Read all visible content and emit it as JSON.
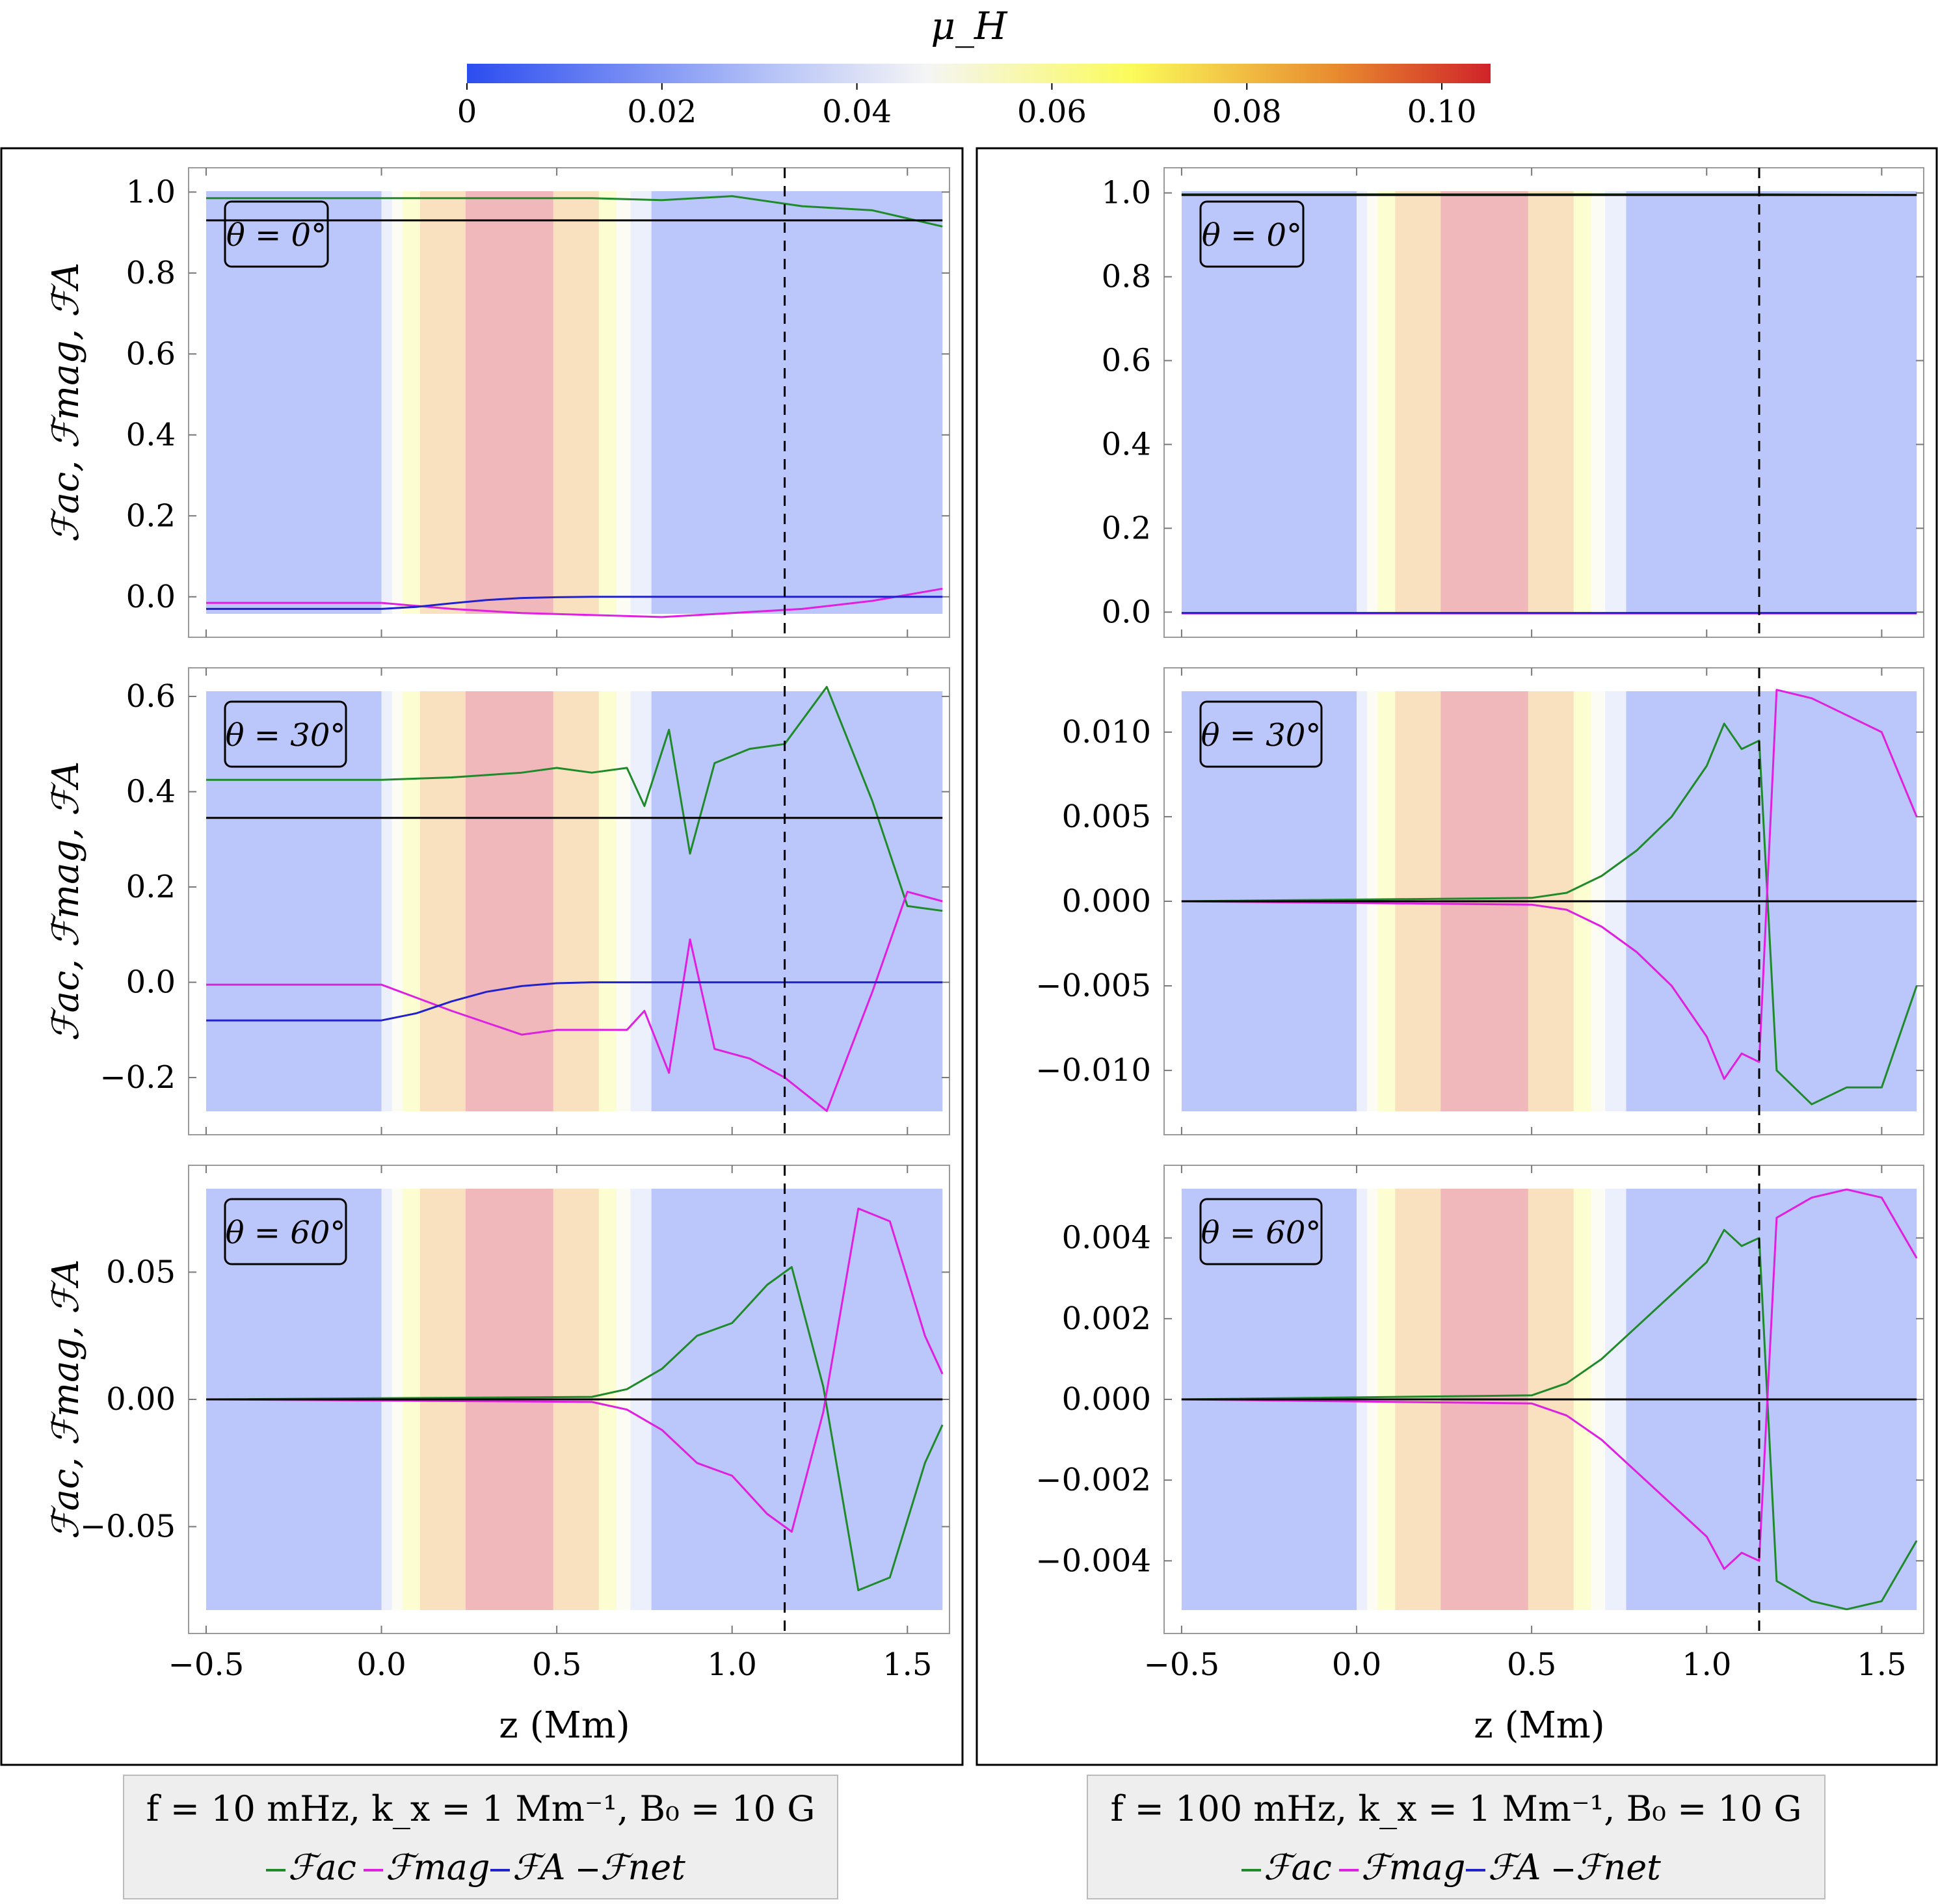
{
  "colorbar": {
    "title": "μ_H",
    "ticks": [
      "0",
      "0.02",
      "0.04",
      "0.06",
      "0.08",
      "0.10"
    ],
    "tick_values": [
      0,
      0.02,
      0.04,
      0.06,
      0.08,
      0.1
    ],
    "range": [
      0,
      0.105
    ],
    "colors": [
      "#2c4df0",
      "#b7c4f7",
      "#f5f5f5",
      "#fbfb5a",
      "#e88a2e",
      "#d0232a"
    ]
  },
  "bands": [
    {
      "z0": -0.5,
      "z1": 0.0,
      "mu": 0.0
    },
    {
      "z0": 0.0,
      "z1": 0.03,
      "mu": 0.035
    },
    {
      "z0": 0.03,
      "z1": 0.06,
      "mu": 0.05
    },
    {
      "z0": 0.06,
      "z1": 0.11,
      "mu": 0.065
    },
    {
      "z0": 0.11,
      "z1": 0.24,
      "mu": 0.085
    },
    {
      "z0": 0.24,
      "z1": 0.49,
      "mu": 0.105
    },
    {
      "z0": 0.49,
      "z1": 0.62,
      "mu": 0.085
    },
    {
      "z0": 0.62,
      "z1": 0.67,
      "mu": 0.065
    },
    {
      "z0": 0.67,
      "z1": 0.71,
      "mu": 0.05
    },
    {
      "z0": 0.71,
      "z1": 0.77,
      "mu": 0.035
    },
    {
      "z0": 0.77,
      "z1": 1.6,
      "mu": 0.0
    }
  ],
  "series_colors": {
    "ac": "#1f8a2a",
    "mag": "#e020e0",
    "A": "#2222cc",
    "net": "#000000"
  },
  "columns": [
    {
      "legend_title": "f = 10 mHz, k_x = 1 Mm⁻¹, B₀ = 10 G",
      "legend_items": [
        "ℱac",
        "ℱmag",
        "ℱA",
        "ℱnet"
      ],
      "xlabel": "z  (Mm)",
      "xticks": [
        "−0.5",
        "0.0",
        "0.5",
        "1.0",
        "1.5"
      ]
    },
    {
      "legend_title": "f = 100 mHz, k_x = 1 Mm⁻¹, B₀ = 10 G",
      "legend_items": [
        "ℱac",
        "ℱmag",
        "ℱA",
        "ℱnet"
      ],
      "xlabel": "z  (Mm)",
      "xticks": [
        "−0.5",
        "0.0",
        "0.5",
        "1.0",
        "1.5"
      ]
    }
  ],
  "chart_data": [
    {
      "type": "line",
      "panel": "left-top",
      "title": "θ = 0°",
      "ylabel": "ℱac, ℱmag, ℱA",
      "xlabel": "z (Mm)",
      "xlim": [
        -0.55,
        1.62
      ],
      "ylim": [
        -0.1,
        1.06
      ],
      "dashed_x": 1.15,
      "yticks": [
        1.0,
        0.8,
        0.6,
        0.4,
        0.2,
        0.0
      ],
      "ytick_labels": [
        "1.0",
        "0.8",
        "0.6",
        "0.4",
        "0.2",
        "0.0"
      ],
      "xticks": [
        -0.5,
        0.0,
        0.5,
        1.0,
        1.5
      ],
      "series": [
        {
          "name": "ℱac",
          "x": [
            -0.5,
            0.0,
            0.3,
            0.6,
            0.8,
            1.0,
            1.2,
            1.4,
            1.6
          ],
          "y": [
            0.985,
            0.985,
            0.985,
            0.985,
            0.98,
            0.99,
            0.965,
            0.955,
            0.915
          ]
        },
        {
          "name": "ℱmag",
          "x": [
            -0.5,
            0.0,
            0.2,
            0.4,
            0.6,
            0.8,
            1.0,
            1.2,
            1.4,
            1.6
          ],
          "y": [
            -0.015,
            -0.015,
            -0.03,
            -0.04,
            -0.045,
            -0.05,
            -0.04,
            -0.03,
            -0.01,
            0.02
          ]
        },
        {
          "name": "ℱA",
          "x": [
            -0.5,
            0.0,
            0.1,
            0.2,
            0.3,
            0.4,
            0.5,
            0.6,
            1.0,
            1.6
          ],
          "y": [
            -0.03,
            -0.03,
            -0.025,
            -0.016,
            -0.008,
            -0.003,
            -0.001,
            0.0,
            0.0,
            0.0
          ]
        },
        {
          "name": "ℱnet",
          "x": [
            -0.5,
            1.6
          ],
          "y": [
            0.93,
            0.93
          ]
        }
      ]
    },
    {
      "type": "line",
      "panel": "left-middle",
      "title": "θ = 30°",
      "ylabel": "ℱac, ℱmag, ℱA",
      "xlabel": "z (Mm)",
      "xlim": [
        -0.55,
        1.62
      ],
      "ylim": [
        -0.32,
        0.66
      ],
      "dashed_x": 1.15,
      "yticks": [
        0.6,
        0.4,
        0.2,
        0.0,
        -0.2
      ],
      "ytick_labels": [
        "0.6",
        "0.4",
        "0.2",
        "0.0",
        "−0.2"
      ],
      "xticks": [
        -0.5,
        0.0,
        0.5,
        1.0,
        1.5
      ],
      "series": [
        {
          "name": "ℱac",
          "x": [
            -0.5,
            0.0,
            0.2,
            0.4,
            0.5,
            0.6,
            0.7,
            0.75,
            0.82,
            0.88,
            0.95,
            1.05,
            1.15,
            1.27,
            1.4,
            1.5,
            1.6
          ],
          "y": [
            0.425,
            0.425,
            0.43,
            0.44,
            0.45,
            0.44,
            0.45,
            0.37,
            0.53,
            0.27,
            0.46,
            0.49,
            0.5,
            0.62,
            0.38,
            0.16,
            0.15
          ]
        },
        {
          "name": "ℱmag",
          "x": [
            -0.5,
            0.0,
            0.2,
            0.4,
            0.5,
            0.6,
            0.7,
            0.75,
            0.82,
            0.88,
            0.95,
            1.05,
            1.15,
            1.27,
            1.4,
            1.5,
            1.6
          ],
          "y": [
            -0.005,
            -0.005,
            -0.06,
            -0.11,
            -0.1,
            -0.1,
            -0.1,
            -0.06,
            -0.19,
            0.09,
            -0.14,
            -0.16,
            -0.2,
            -0.27,
            -0.02,
            0.19,
            0.17
          ]
        },
        {
          "name": "ℱA",
          "x": [
            -0.5,
            0.0,
            0.1,
            0.2,
            0.3,
            0.4,
            0.5,
            0.6,
            1.0,
            1.6
          ],
          "y": [
            -0.08,
            -0.08,
            -0.065,
            -0.04,
            -0.02,
            -0.008,
            -0.002,
            0.0,
            0.0,
            0.0
          ]
        },
        {
          "name": "ℱnet",
          "x": [
            -0.5,
            1.6
          ],
          "y": [
            0.345,
            0.345
          ]
        }
      ]
    },
    {
      "type": "line",
      "panel": "left-bottom",
      "title": "θ = 60°",
      "ylabel": "ℱac, ℱmag, ℱA",
      "xlabel": "z (Mm)",
      "xlim": [
        -0.55,
        1.62
      ],
      "ylim": [
        -0.092,
        0.092
      ],
      "dashed_x": 1.15,
      "yticks": [
        0.05,
        0.0,
        -0.05
      ],
      "ytick_labels": [
        "0.05",
        "0.00",
        "−0.05"
      ],
      "xticks": [
        -0.5,
        0.0,
        0.5,
        1.0,
        1.5
      ],
      "series": [
        {
          "name": "ℱac",
          "x": [
            -0.5,
            0.6,
            0.7,
            0.8,
            0.9,
            1.0,
            1.1,
            1.17,
            1.26,
            1.36,
            1.45,
            1.55,
            1.6
          ],
          "y": [
            0.0,
            0.001,
            0.004,
            0.012,
            0.025,
            0.03,
            0.045,
            0.052,
            0.005,
            -0.075,
            -0.07,
            -0.025,
            -0.01
          ]
        },
        {
          "name": "ℱmag",
          "x": [
            -0.5,
            0.6,
            0.7,
            0.8,
            0.9,
            1.0,
            1.1,
            1.17,
            1.26,
            1.36,
            1.45,
            1.55,
            1.6
          ],
          "y": [
            0.0,
            -0.001,
            -0.004,
            -0.012,
            -0.025,
            -0.03,
            -0.045,
            -0.052,
            -0.005,
            0.075,
            0.07,
            0.025,
            0.01
          ]
        },
        {
          "name": "ℱA",
          "x": [
            -0.5,
            1.6
          ],
          "y": [
            0.0,
            0.0
          ]
        },
        {
          "name": "ℱnet",
          "x": [
            -0.5,
            1.6
          ],
          "y": [
            0.0,
            0.0
          ]
        }
      ]
    },
    {
      "type": "line",
      "panel": "right-top",
      "title": "θ = 0°",
      "ylabel": "",
      "xlabel": "z (Mm)",
      "xlim": [
        -0.55,
        1.62
      ],
      "ylim": [
        -0.06,
        1.06
      ],
      "dashed_x": 1.15,
      "yticks": [
        1.0,
        0.8,
        0.6,
        0.4,
        0.2,
        0.0
      ],
      "ytick_labels": [
        "1.0",
        "0.8",
        "0.6",
        "0.4",
        "0.2",
        "0.0"
      ],
      "xticks": [
        -0.5,
        0.0,
        0.5,
        1.0,
        1.5
      ],
      "series": [
        {
          "name": "ℱac",
          "x": [
            -0.5,
            1.15,
            1.6
          ],
          "y": [
            0.997,
            0.997,
            0.995
          ]
        },
        {
          "name": "ℱmag",
          "x": [
            -0.5,
            1.6
          ],
          "y": [
            -0.003,
            -0.003
          ]
        },
        {
          "name": "ℱA",
          "x": [
            -0.5,
            1.6
          ],
          "y": [
            -0.002,
            -0.002
          ]
        },
        {
          "name": "ℱnet",
          "x": [
            -0.5,
            1.6
          ],
          "y": [
            0.995,
            0.995
          ]
        }
      ]
    },
    {
      "type": "line",
      "panel": "right-middle",
      "title": "θ = 30°",
      "ylabel": "",
      "xlabel": "z (Mm)",
      "xlim": [
        -0.55,
        1.62
      ],
      "ylim": [
        -0.0138,
        0.0138
      ],
      "dashed_x": 1.15,
      "yticks": [
        0.01,
        0.005,
        0.0,
        -0.005,
        -0.01
      ],
      "ytick_labels": [
        "0.010",
        "0.005",
        "0.000",
        "−0.005",
        "−0.010"
      ],
      "xticks": [
        -0.5,
        0.0,
        0.5,
        1.0,
        1.5
      ],
      "series": [
        {
          "name": "ℱac",
          "x": [
            -0.5,
            0.5,
            0.6,
            0.7,
            0.8,
            0.9,
            1.0,
            1.05,
            1.1,
            1.15,
            1.2,
            1.3,
            1.4,
            1.5,
            1.6
          ],
          "y": [
            0.0,
            0.0002,
            0.0005,
            0.0015,
            0.003,
            0.005,
            0.008,
            0.0105,
            0.009,
            0.0095,
            -0.01,
            -0.012,
            -0.011,
            -0.011,
            -0.005
          ]
        },
        {
          "name": "ℱmag",
          "x": [
            -0.5,
            0.5,
            0.6,
            0.7,
            0.8,
            0.9,
            1.0,
            1.05,
            1.1,
            1.15,
            1.2,
            1.3,
            1.4,
            1.5,
            1.6
          ],
          "y": [
            0.0,
            -0.0002,
            -0.0005,
            -0.0015,
            -0.003,
            -0.005,
            -0.008,
            -0.0105,
            -0.009,
            -0.0095,
            0.0125,
            0.012,
            0.011,
            0.01,
            0.005
          ]
        },
        {
          "name": "ℱA",
          "x": [
            -0.5,
            1.6
          ],
          "y": [
            0.0,
            0.0
          ]
        },
        {
          "name": "ℱnet",
          "x": [
            -0.5,
            1.6
          ],
          "y": [
            0.0,
            0.0
          ]
        }
      ]
    },
    {
      "type": "line",
      "panel": "right-bottom",
      "title": "θ = 60°",
      "ylabel": "",
      "xlabel": "z (Mm)",
      "xlim": [
        -0.55,
        1.62
      ],
      "ylim": [
        -0.0058,
        0.0058
      ],
      "dashed_x": 1.15,
      "yticks": [
        0.004,
        0.002,
        0.0,
        -0.002,
        -0.004
      ],
      "ytick_labels": [
        "0.004",
        "0.002",
        "0.000",
        "−0.002",
        "−0.004"
      ],
      "xticks": [
        -0.5,
        0.0,
        0.5,
        1.0,
        1.5
      ],
      "series": [
        {
          "name": "ℱac",
          "x": [
            -0.5,
            0.5,
            0.6,
            0.7,
            0.8,
            0.9,
            1.0,
            1.05,
            1.1,
            1.15,
            1.2,
            1.3,
            1.4,
            1.5,
            1.6
          ],
          "y": [
            0.0,
            0.0001,
            0.0004,
            0.001,
            0.0018,
            0.0026,
            0.0034,
            0.0042,
            0.0038,
            0.004,
            -0.0045,
            -0.005,
            -0.0052,
            -0.005,
            -0.0035
          ]
        },
        {
          "name": "ℱmag",
          "x": [
            -0.5,
            0.5,
            0.6,
            0.7,
            0.8,
            0.9,
            1.0,
            1.05,
            1.1,
            1.15,
            1.2,
            1.3,
            1.4,
            1.5,
            1.6
          ],
          "y": [
            0.0,
            -0.0001,
            -0.0004,
            -0.001,
            -0.0018,
            -0.0026,
            -0.0034,
            -0.0042,
            -0.0038,
            -0.004,
            0.0045,
            0.005,
            0.0052,
            0.005,
            0.0035
          ]
        },
        {
          "name": "ℱA",
          "x": [
            -0.5,
            1.6
          ],
          "y": [
            0.0,
            0.0
          ]
        },
        {
          "name": "ℱnet",
          "x": [
            -0.5,
            1.6
          ],
          "y": [
            0.0,
            0.0
          ]
        }
      ]
    }
  ]
}
